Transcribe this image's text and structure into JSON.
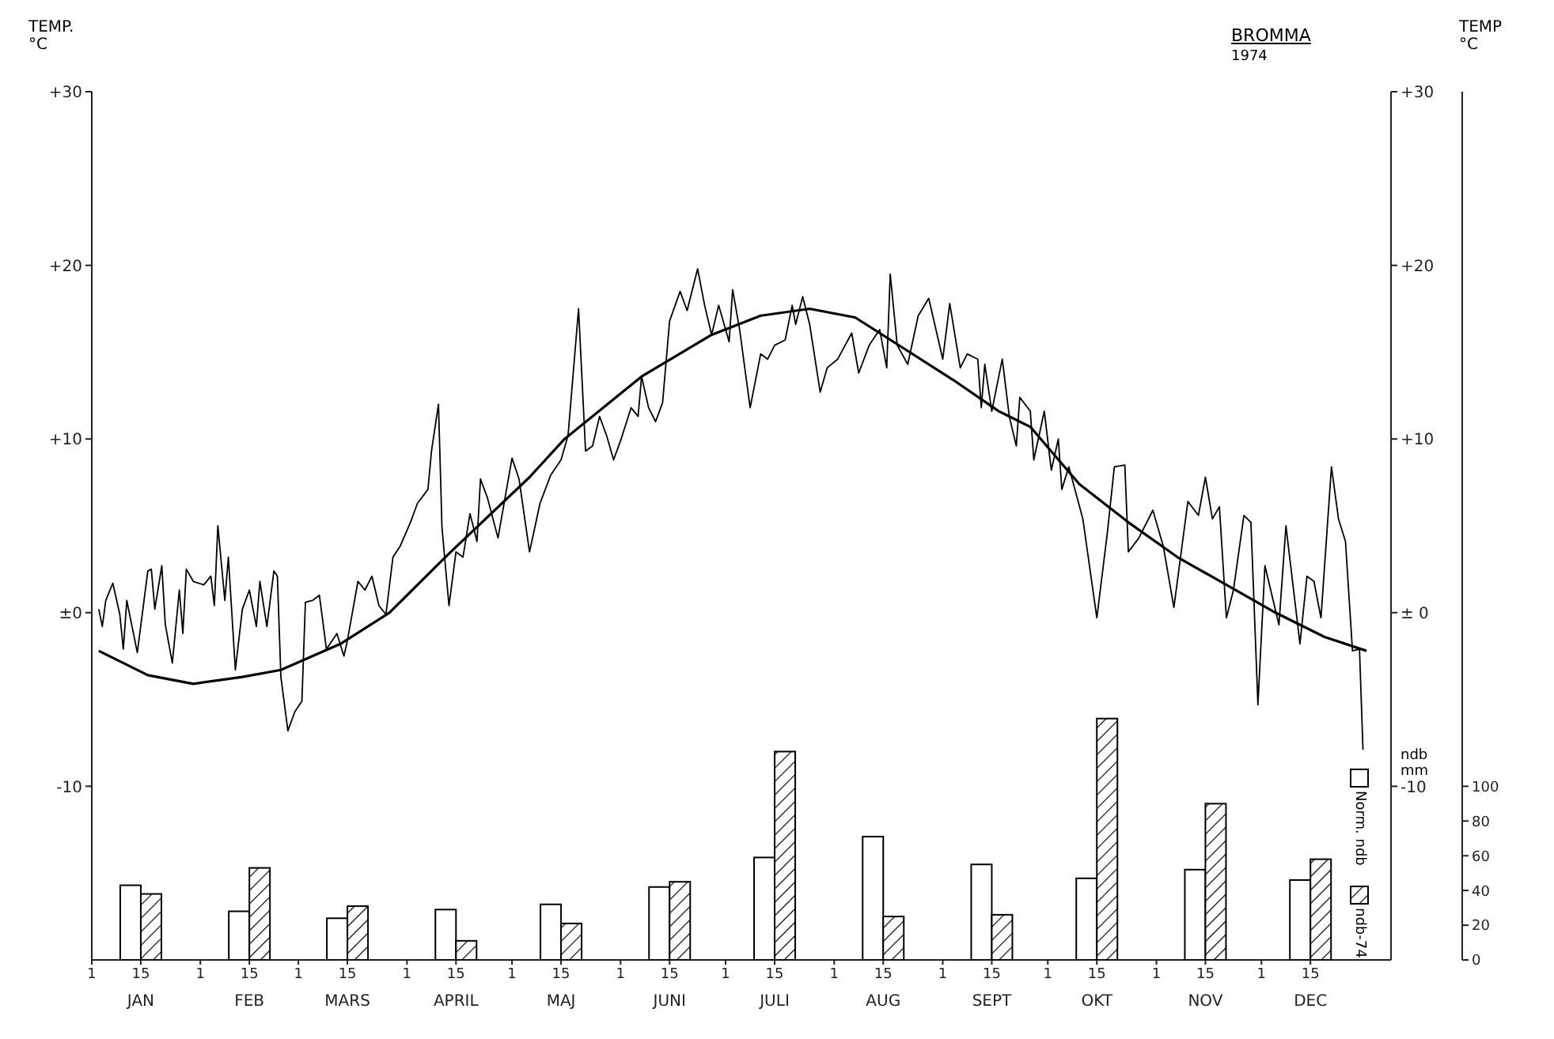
{
  "chart_data": {
    "type": "line",
    "title": "BROMMA",
    "subtitle": "1974",
    "ylabel": "TEMP. °C",
    "y2label": "TEMP °C",
    "y3label": "ndb mm",
    "xlim": [
      "1974-01-01",
      "1975-01-07"
    ],
    "xticks": [
      {
        "value": "1974-01-01",
        "label": "1"
      },
      {
        "value": "1974-01-15",
        "label": "15"
      },
      {
        "value": "1974-02-01",
        "label": "1"
      },
      {
        "value": "1974-02-15",
        "label": "15"
      },
      {
        "value": "1974-03-01",
        "label": "1"
      },
      {
        "value": "1974-03-15",
        "label": "15"
      },
      {
        "value": "1974-04-01",
        "label": "1"
      },
      {
        "value": "1974-04-15",
        "label": "15"
      },
      {
        "value": "1974-05-01",
        "label": "1"
      },
      {
        "value": "1974-05-15",
        "label": "15"
      },
      {
        "value": "1974-06-01",
        "label": "1"
      },
      {
        "value": "1974-06-15",
        "label": "15"
      },
      {
        "value": "1974-07-01",
        "label": "1"
      },
      {
        "value": "1974-07-15",
        "label": "15"
      },
      {
        "value": "1974-08-01",
        "label": "1"
      },
      {
        "value": "1974-08-15",
        "label": "15"
      },
      {
        "value": "1974-09-01",
        "label": "1"
      },
      {
        "value": "1974-09-15",
        "label": "15"
      },
      {
        "value": "1974-10-01",
        "label": "1"
      },
      {
        "value": "1974-10-15",
        "label": "15"
      },
      {
        "value": "1974-11-01",
        "label": "1"
      },
      {
        "value": "1974-11-15",
        "label": "15"
      },
      {
        "value": "1974-12-01",
        "label": "1"
      },
      {
        "value": "1974-12-15",
        "label": "15"
      }
    ],
    "x2lim": [
      "1974-01-01",
      "1975-01-07"
    ],
    "x2ticks": [
      {
        "value": "1974-01-15",
        "label": "JAN"
      },
      {
        "value": "1974-02-15",
        "label": "FEB"
      },
      {
        "value": "1974-03-15",
        "label": "MARS"
      },
      {
        "value": "1974-04-15",
        "label": "APRIL"
      },
      {
        "value": "1974-05-15",
        "label": "MAJ"
      },
      {
        "value": "1974-06-15",
        "label": "JUNI"
      },
      {
        "value": "1974-07-15",
        "label": "JULI"
      },
      {
        "value": "1974-08-15",
        "label": "AUG"
      },
      {
        "value": "1974-09-15",
        "label": "SEPT"
      },
      {
        "value": "1974-10-15",
        "label": "OKT"
      },
      {
        "value": "1974-11-15",
        "label": "NOV"
      },
      {
        "value": "1974-12-15",
        "label": "DEC"
      }
    ],
    "ylim": [
      -20,
      30
    ],
    "yticks": [
      {
        "value": 30,
        "label": "+30"
      },
      {
        "value": 20,
        "label": "+20"
      },
      {
        "value": 10,
        "label": "+10"
      },
      {
        "value": 0,
        "label": "±0"
      },
      {
        "value": -10,
        "label": "-10"
      }
    ],
    "y2lim": [
      -20,
      30
    ],
    "y2ticks": [
      {
        "value": 30,
        "label": "+30"
      },
      {
        "value": 20,
        "label": "+20"
      },
      {
        "value": 10,
        "label": "+10"
      },
      {
        "value": 0,
        "label": "± 0"
      },
      {
        "value": -10,
        "label": "-10"
      }
    ],
    "y3lim": [
      0,
      500
    ],
    "y3ticks": [
      0,
      20,
      40,
      60,
      80,
      100
    ],
    "legend": "bottom right",
    "marker": "none",
    "line_style": "solid",
    "series": [
      {
        "color": "#000000",
        "x": [
          "1974-01-03",
          "1974-01-04",
          "1974-01-05",
          "1974-01-07",
          "1974-01-09",
          "1974-01-10",
          "1974-01-11",
          "1974-01-14",
          "1974-01-17",
          "1974-01-18",
          "1974-01-19",
          "1974-01-21",
          "1974-01-22",
          "1974-01-24",
          "1974-01-26",
          "1974-01-27",
          "1974-01-28",
          "1974-01-30",
          "1974-02-02",
          "1974-02-04",
          "1974-02-05",
          "1974-02-06",
          "1974-02-08",
          "1974-02-09",
          "1974-02-11",
          "1974-02-13",
          "1974-02-15",
          "1974-02-17",
          "1974-02-18",
          "1974-02-20",
          "1974-02-22",
          "1974-02-23",
          "1974-02-24",
          "1974-02-26",
          "1974-02-28",
          "1974-03-02",
          "1974-03-03",
          "1974-03-05",
          "1974-03-07",
          "1974-03-09",
          "1974-03-12",
          "1974-03-14",
          "1974-03-15",
          "1974-03-18",
          "1974-03-20",
          "1974-03-22",
          "1974-03-24",
          "1974-03-26",
          "1974-03-28",
          "1974-03-30",
          "1974-04-02",
          "1974-04-04",
          "1974-04-07",
          "1974-04-08",
          "1974-04-10",
          "1974-04-11",
          "1974-04-13",
          "1974-04-15",
          "1974-04-17",
          "1974-04-19",
          "1974-04-21",
          "1974-04-22",
          "1974-04-24",
          "1974-04-27",
          "1974-05-01",
          "1974-05-03",
          "1974-05-06",
          "1974-05-09",
          "1974-05-12",
          "1974-05-15",
          "1974-05-17",
          "1974-05-20",
          "1974-05-22",
          "1974-05-24",
          "1974-05-26",
          "1974-05-28",
          "1974-05-30",
          "1974-06-01",
          "1974-06-04",
          "1974-06-06",
          "1974-06-07",
          "1974-06-09",
          "1974-06-11",
          "1974-06-13",
          "1974-06-15",
          "1974-06-18",
          "1974-06-20",
          "1974-06-23",
          "1974-06-25",
          "1974-06-27",
          "1974-06-29",
          "1974-07-02",
          "1974-07-03",
          "1974-07-05",
          "1974-07-08",
          "1974-07-11",
          "1974-07-13",
          "1974-07-15",
          "1974-07-18",
          "1974-07-20",
          "1974-07-21",
          "1974-07-23",
          "1974-07-25",
          "1974-07-28",
          "1974-07-30",
          "1974-08-02",
          "1974-08-06",
          "1974-08-08",
          "1974-08-11",
          "1974-08-14",
          "1974-08-16",
          "1974-08-17",
          "1974-08-19",
          "1974-08-22",
          "1974-08-25",
          "1974-08-28",
          "1974-09-01",
          "1974-09-03",
          "1974-09-06",
          "1974-09-08",
          "1974-09-11",
          "1974-09-12",
          "1974-09-13",
          "1974-09-15",
          "1974-09-18",
          "1974-09-20",
          "1974-09-22",
          "1974-09-23",
          "1974-09-26",
          "1974-09-27",
          "1974-09-30",
          "1974-10-02",
          "1974-10-04",
          "1974-10-05",
          "1974-10-07",
          "1974-10-11",
          "1974-10-15",
          "1974-10-18",
          "1974-10-20",
          "1974-10-23",
          "1974-10-24",
          "1974-10-27",
          "1974-10-31",
          "1974-11-03",
          "1974-11-06",
          "1974-11-10",
          "1974-11-13",
          "1974-11-15",
          "1974-11-17",
          "1974-11-19",
          "1974-11-21",
          "1974-11-23",
          "1974-11-26",
          "1974-11-28",
          "1974-11-30",
          "1974-12-02",
          "1974-12-06",
          "1974-12-08",
          "1974-12-12",
          "1974-12-14",
          "1974-12-16",
          "1974-12-18",
          "1974-12-21",
          "1974-12-23",
          "1974-12-25",
          "1974-12-27",
          "1974-12-29",
          "1974-12-30"
        ],
        "values": [
          0.2,
          -0.8,
          0.7,
          1.7,
          -0.1,
          -2.1,
          0.7,
          -2.3,
          2.4,
          2.5,
          0.2,
          2.7,
          -0.7,
          -2.9,
          1.3,
          -1.2,
          2.5,
          1.8,
          1.6,
          2.1,
          0.4,
          5.0,
          0.7,
          3.2,
          -3.3,
          0.2,
          1.3,
          -0.8,
          1.8,
          -0.8,
          2.4,
          2.1,
          -3.7,
          -6.8,
          -5.7,
          -5.1,
          0.6,
          0.7,
          1.0,
          -2.1,
          -1.2,
          -2.5,
          -1.6,
          1.8,
          1.3,
          2.1,
          0.4,
          -0.1,
          3.2,
          3.8,
          5.2,
          6.3,
          7.1,
          9.3,
          12.0,
          4.9,
          0.4,
          3.5,
          3.2,
          5.7,
          4.1,
          7.7,
          6.6,
          4.3,
          8.9,
          7.7,
          3.5,
          6.3,
          7.9,
          8.8,
          10.2,
          17.5,
          9.3,
          9.6,
          11.3,
          10.2,
          8.8,
          9.9,
          11.8,
          11.3,
          13.6,
          11.8,
          11.0,
          12.1,
          16.8,
          18.5,
          17.4,
          19.8,
          17.7,
          16.0,
          17.7,
          15.6,
          18.6,
          16.3,
          11.8,
          14.9,
          14.6,
          15.4,
          15.7,
          17.7,
          16.6,
          18.2,
          16.6,
          12.7,
          14.1,
          14.6,
          16.1,
          13.8,
          15.4,
          16.3,
          14.1,
          19.5,
          15.4,
          14.3,
          17.1,
          18.1,
          14.6,
          17.8,
          14.1,
          14.9,
          14.6,
          11.8,
          14.3,
          11.6,
          14.6,
          11.3,
          9.6,
          12.4,
          11.6,
          8.8,
          11.6,
          8.2,
          10.0,
          7.1,
          8.4,
          5.4,
          -0.3,
          4.6,
          8.4,
          8.5,
          3.5,
          4.3,
          5.9,
          3.8,
          0.3,
          6.4,
          5.6,
          7.8,
          5.4,
          6.1,
          -0.3,
          1.3,
          5.6,
          5.2,
          -5.3,
          2.7,
          -0.7,
          5.0,
          -1.8,
          2.1,
          1.8,
          -0.3,
          8.4,
          5.4,
          4.1,
          -2.2,
          -2.1,
          -7.9
        ]
      },
      {
        "color": "#000000",
        "x": [
          "1974-01-03",
          "1974-01-17",
          "1974-01-30",
          "1974-02-13",
          "1974-02-24",
          "1974-03-13",
          "1974-03-27",
          "1974-04-13",
          "1974-05-06",
          "1974-05-16",
          "1974-06-07",
          "1974-06-27",
          "1974-07-11",
          "1974-07-25",
          "1974-08-07",
          "1974-08-21",
          "1974-09-04",
          "1974-09-17",
          "1974-09-26",
          "1974-10-10",
          "1974-10-24",
          "1974-11-07",
          "1974-11-21",
          "1974-12-05",
          "1974-12-19",
          "1974-12-31"
        ],
        "values": [
          -2.2,
          -3.6,
          -4.1,
          -3.7,
          -3.3,
          -1.8,
          0,
          3.4,
          7.8,
          10.0,
          13.6,
          16.0,
          17.1,
          17.5,
          17.0,
          15.2,
          13.4,
          11.6,
          10.7,
          7.4,
          5.2,
          3.2,
          1.6,
          0,
          -1.4,
          -2.2
        ]
      },
      {
        "type": "bar",
        "name": "Norm. ndb",
        "color": "#ffffff",
        "axis": "y3",
        "x": [
          "1974-01-15",
          "1974-02-15",
          "1974-03-15",
          "1974-04-15",
          "1974-05-15",
          "1974-06-15",
          "1974-07-15",
          "1974-08-15",
          "1974-09-15",
          "1974-10-15",
          "1974-11-15",
          "1974-12-15"
        ],
        "values": [
          43,
          28,
          24,
          29,
          32,
          42,
          59,
          71,
          55,
          47,
          52,
          46
        ]
      },
      {
        "type": "bar",
        "name": "ndb-74",
        "color": "#000000",
        "axis": "y3",
        "x": [
          "1974-01-15",
          "1974-02-15",
          "1974-03-15",
          "1974-04-15",
          "1974-05-15",
          "1974-06-15",
          "1974-07-15",
          "1974-08-15",
          "1974-09-15",
          "1974-10-15",
          "1974-11-15",
          "1974-12-15"
        ],
        "values": [
          38,
          53,
          31,
          11,
          21,
          45,
          120,
          25,
          26,
          139,
          90,
          58
        ]
      }
    ]
  }
}
